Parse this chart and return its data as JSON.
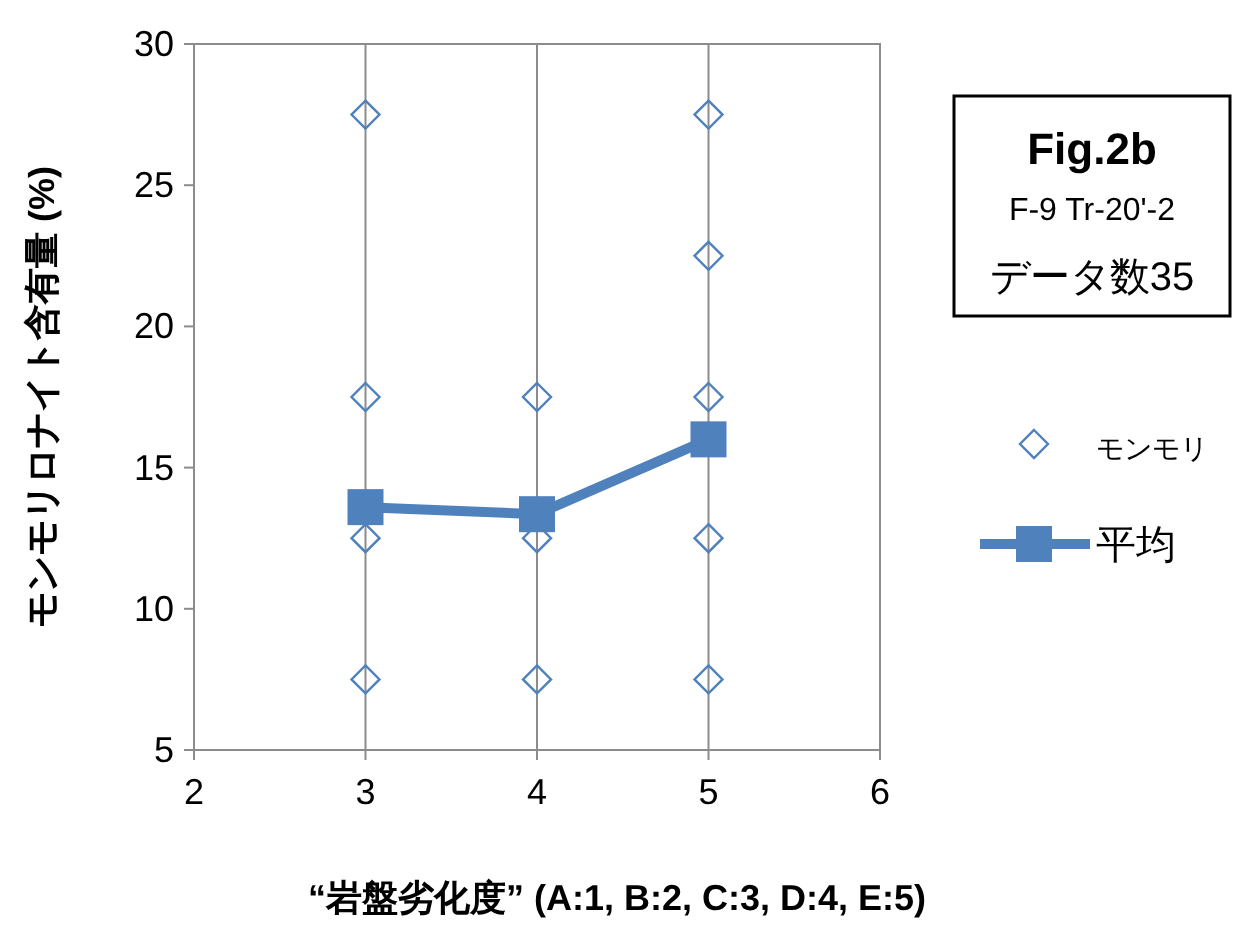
{
  "chart_data": {
    "type": "scatter",
    "xlabel": "“岩盤劣化度” (A:1, B:2, C:3, D:4, E:5)",
    "ylabel": "モンモリロナイト含有量 (%)",
    "xlim": [
      2,
      6
    ],
    "xticks": [
      2,
      3,
      4,
      5,
      6
    ],
    "ylim": [
      5,
      30
    ],
    "yticks": [
      5,
      10,
      15,
      20,
      25,
      30
    ],
    "grid": "x",
    "legend": "right",
    "annotations": [
      "Fig.2b",
      "F-9 Tr-20'-2",
      "データ数35"
    ],
    "series": [
      {
        "name": "モンモリ",
        "type": "scatter",
        "marker": "diamond",
        "color": "#4f81bd",
        "x": [
          3,
          3,
          3,
          3,
          4,
          4,
          4,
          5,
          5,
          5,
          5,
          5
        ],
        "values": [
          27.5,
          17.5,
          12.5,
          7.5,
          17.5,
          12.5,
          7.5,
          27.5,
          22.5,
          17.5,
          12.5,
          7.5
        ]
      },
      {
        "name": "平均",
        "type": "line",
        "marker": "square",
        "line_style": "solid",
        "color": "#4f81bd",
        "x": [
          3,
          4,
          5
        ],
        "values": [
          13.6,
          13.35,
          16.0
        ]
      }
    ]
  }
}
